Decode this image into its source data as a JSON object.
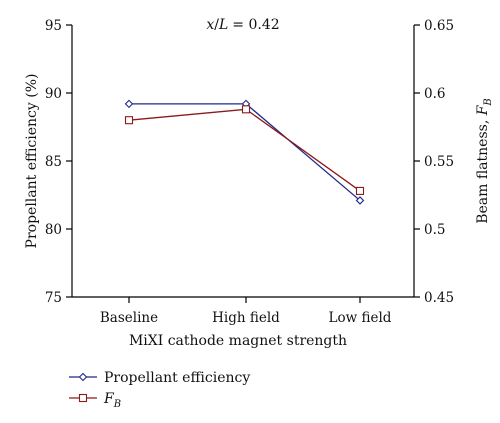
{
  "chart_data": {
    "type": "line",
    "categories": [
      "Baseline",
      "High field",
      "Low field"
    ],
    "xlabel": "MiXI cathode magnet strength",
    "annotation": {
      "lhs_num": "x",
      "lhs_den": "L",
      "value": "= 0.42"
    },
    "y_left": {
      "label": "Propellant efficiency (%)",
      "lim": [
        75,
        95
      ],
      "ticks": [
        75,
        80,
        85,
        90,
        95
      ]
    },
    "y_right": {
      "label_main": "Beam flatness, ",
      "label_sym": "F",
      "label_sub": "B",
      "lim": [
        0.45,
        0.65
      ],
      "ticks": [
        "0.45",
        "0.5",
        "0.55",
        "0.6",
        "0.65"
      ]
    },
    "series": [
      {
        "name": "Propellant efficiency",
        "axis": "left",
        "values": [
          89.2,
          89.2,
          82.1
        ],
        "color": "#1f2a8a",
        "marker": "diamond"
      },
      {
        "name_sym": "F",
        "name_sub": "B",
        "axis": "right",
        "values": [
          0.58,
          0.588,
          0.528
        ],
        "color": "#8b1a1a",
        "marker": "square"
      }
    ],
    "grid": false,
    "legend_position": "bottom-left"
  }
}
